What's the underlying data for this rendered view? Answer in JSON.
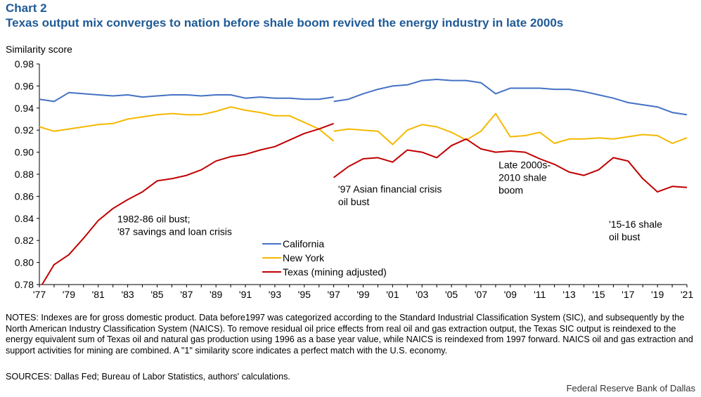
{
  "header": {
    "chart_label": "Chart 2",
    "title": "Texas output mix converges to nation before shale boom revived the energy industry in late 2000s"
  },
  "footer": {
    "notes": "NOTES: Indexes are for gross domestic product. Data before1997 was categorized according to the Standard Industrial Classification System (SIC), and subsequently by the North American Industry Classification System (NAICS). To remove residual oil price effects from real oil and gas extraction output, the Texas SIC output is reindexed to the energy equivalent sum of Texas oil and natural gas production using 1996 as a base year value, while NAICS is reindexed from 1997 forward. NAICS oil and gas extraction and support activities for mining are combined. A \"1\" similarity score indicates a perfect match with the U.S. economy.",
    "sources": "SOURCES: Dallas Fed; Bureau of Labor Statistics, authors' calculations.",
    "credit": "Federal Reserve Bank of Dallas"
  },
  "chart_data": {
    "type": "line",
    "ylabel": "Similarity score",
    "ylim": [
      0.78,
      0.98
    ],
    "yticks": [
      0.78,
      0.8,
      0.82,
      0.84,
      0.86,
      0.88,
      0.9,
      0.92,
      0.94,
      0.96,
      0.98
    ],
    "ytick_labels": [
      "0.78",
      "0.80",
      "0.82",
      "0.84",
      "0.86",
      "0.88",
      "0.90",
      "0.92",
      "0.94",
      "0.96",
      "0.98"
    ],
    "xlim": [
      1977,
      2021
    ],
    "xticks": [
      1977,
      1979,
      1981,
      1983,
      1985,
      1987,
      1989,
      1991,
      1993,
      1995,
      1997,
      1999,
      2001,
      2003,
      2005,
      2007,
      2009,
      2011,
      2013,
      2015,
      2017,
      2019,
      2021
    ],
    "xtick_labels": [
      "'77",
      "'79",
      "'81",
      "'83",
      "'85",
      "'87",
      "'89",
      "'91",
      "'93",
      "'95",
      "'97",
      "'99",
      "'01",
      "'03",
      "'05",
      "'07",
      "'09",
      "'11",
      "'13",
      "'15",
      "'17",
      "'19",
      "'21"
    ],
    "series": [
      {
        "name": "California",
        "color": "#4472c4",
        "segments": [
          {
            "x": [
              1977,
              1978,
              1979,
              1980,
              1981,
              1982,
              1983,
              1984,
              1985,
              1986,
              1987,
              1988,
              1989,
              1990,
              1991,
              1992,
              1993,
              1994,
              1995,
              1996,
              1997
            ],
            "y": [
              0.948,
              0.946,
              0.954,
              0.953,
              0.952,
              0.951,
              0.952,
              0.95,
              0.951,
              0.952,
              0.952,
              0.951,
              0.952,
              0.952,
              0.949,
              0.95,
              0.949,
              0.949,
              0.948,
              0.948,
              0.95
            ]
          },
          {
            "x": [
              1997,
              1998,
              1999,
              2000,
              2001,
              2002,
              2003,
              2004,
              2005,
              2006,
              2007,
              2008,
              2009,
              2010,
              2011,
              2012,
              2013,
              2014,
              2015,
              2016,
              2017,
              2018,
              2019,
              2020,
              2021
            ],
            "y": [
              0.946,
              0.948,
              0.953,
              0.957,
              0.96,
              0.961,
              0.965,
              0.966,
              0.965,
              0.965,
              0.963,
              0.953,
              0.958,
              0.958,
              0.958,
              0.957,
              0.957,
              0.955,
              0.952,
              0.949,
              0.945,
              0.943,
              0.941,
              0.936,
              0.934
            ]
          }
        ]
      },
      {
        "name": "New York",
        "color": "#f5b800",
        "segments": [
          {
            "x": [
              1977,
              1978,
              1979,
              1980,
              1981,
              1982,
              1983,
              1984,
              1985,
              1986,
              1987,
              1988,
              1989,
              1990,
              1991,
              1992,
              1993,
              1994,
              1995,
              1996,
              1997
            ],
            "y": [
              0.923,
              0.919,
              0.921,
              0.923,
              0.925,
              0.926,
              0.93,
              0.932,
              0.934,
              0.935,
              0.934,
              0.934,
              0.937,
              0.941,
              0.938,
              0.936,
              0.933,
              0.933,
              0.927,
              0.921,
              0.91
            ]
          },
          {
            "x": [
              1997,
              1998,
              1999,
              2000,
              2001,
              2002,
              2003,
              2004,
              2005,
              2006,
              2007,
              2008,
              2009,
              2010,
              2011,
              2012,
              2013,
              2014,
              2015,
              2016,
              2017,
              2018,
              2019,
              2020,
              2021
            ],
            "y": [
              0.919,
              0.921,
              0.92,
              0.919,
              0.907,
              0.92,
              0.925,
              0.923,
              0.918,
              0.911,
              0.919,
              0.935,
              0.914,
              0.915,
              0.918,
              0.908,
              0.912,
              0.912,
              0.913,
              0.912,
              0.914,
              0.916,
              0.915,
              0.908,
              0.913
            ]
          }
        ]
      },
      {
        "name": "Texas (mining adjusted)",
        "color": "#c00000",
        "segments": [
          {
            "x": [
              1977,
              1978,
              1979,
              1980,
              1981,
              1982,
              1983,
              1984,
              1985,
              1986,
              1987,
              1988,
              1989,
              1990,
              1991,
              1992,
              1993,
              1994,
              1995,
              1996,
              1997
            ],
            "y": [
              0.776,
              0.798,
              0.807,
              0.822,
              0.838,
              0.849,
              0.857,
              0.864,
              0.874,
              0.876,
              0.879,
              0.884,
              0.892,
              0.896,
              0.898,
              0.902,
              0.905,
              0.911,
              0.917,
              0.921,
              0.926
            ]
          },
          {
            "x": [
              1997,
              1998,
              1999,
              2000,
              2001,
              2002,
              2003,
              2004,
              2005,
              2006,
              2007,
              2008,
              2009,
              2010,
              2011,
              2012,
              2013,
              2014,
              2015,
              2016,
              2017,
              2018,
              2019,
              2020,
              2021
            ],
            "y": [
              0.877,
              0.887,
              0.894,
              0.895,
              0.891,
              0.902,
              0.9,
              0.895,
              0.906,
              0.912,
              0.903,
              0.9,
              0.901,
              0.9,
              0.894,
              0.889,
              0.882,
              0.879,
              0.884,
              0.895,
              0.892,
              0.876,
              0.864,
              0.869,
              0.868
            ]
          }
        ]
      }
    ],
    "legend": [
      {
        "label": "California",
        "color": "#4472c4"
      },
      {
        "label": "New York",
        "color": "#f5b800"
      },
      {
        "label": "Texas (mining adjusted)",
        "color": "#c00000"
      }
    ],
    "annotations": [
      {
        "text": "1982-86 oil bust;\n'87 savings and loan crisis",
        "x": 1982.3,
        "y": 0.8365
      },
      {
        "text": "'97 Asian financial crisis\noil bust",
        "x": 1997.3,
        "y": 0.8635
      },
      {
        "text": "Late 2000s-\n2010 shale\nboom",
        "x": 2008.2,
        "y": 0.8855
      },
      {
        "text": "'15-16 shale\noil bust",
        "x": 2015.7,
        "y": 0.8315
      }
    ]
  }
}
